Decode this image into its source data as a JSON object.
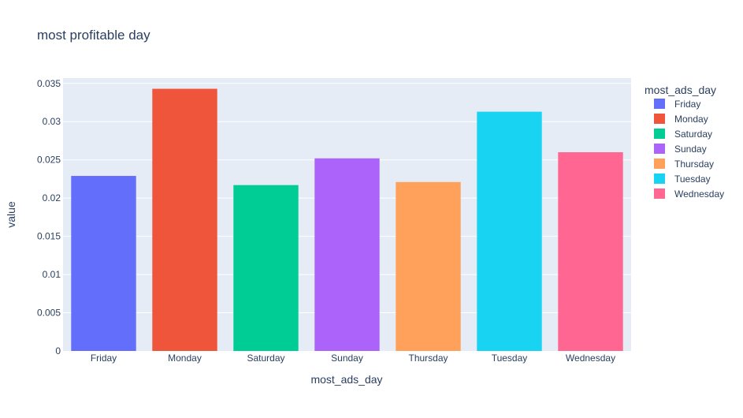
{
  "chart_data": {
    "type": "bar",
    "title": "most profitable day",
    "xlabel": "most_ads_day",
    "ylabel": "value",
    "categories": [
      "Friday",
      "Monday",
      "Saturday",
      "Sunday",
      "Thursday",
      "Tuesday",
      "Wednesday"
    ],
    "values": [
      0.0229,
      0.0343,
      0.0217,
      0.0252,
      0.0221,
      0.0313,
      0.026
    ],
    "colors": [
      "#636efa",
      "#EF553B",
      "#00cc96",
      "#ab63fa",
      "#FFA15A",
      "#19d3f3",
      "#FF6692"
    ],
    "ylim": [
      0,
      0.0357
    ],
    "yticks": [
      0,
      0.005,
      0.01,
      0.015,
      0.02,
      0.025,
      0.03,
      0.035
    ],
    "ytick_labels": [
      "0",
      "0.005",
      "0.01",
      "0.015",
      "0.02",
      "0.025",
      "0.03",
      "0.035"
    ],
    "grid": true,
    "legend": {
      "title": "most_ads_day",
      "placement": "right",
      "entries": [
        "Friday",
        "Monday",
        "Saturday",
        "Sunday",
        "Thursday",
        "Tuesday",
        "Wednesday"
      ]
    },
    "plot_background": "#e5ecf6",
    "grid_color": "#ffffff"
  }
}
